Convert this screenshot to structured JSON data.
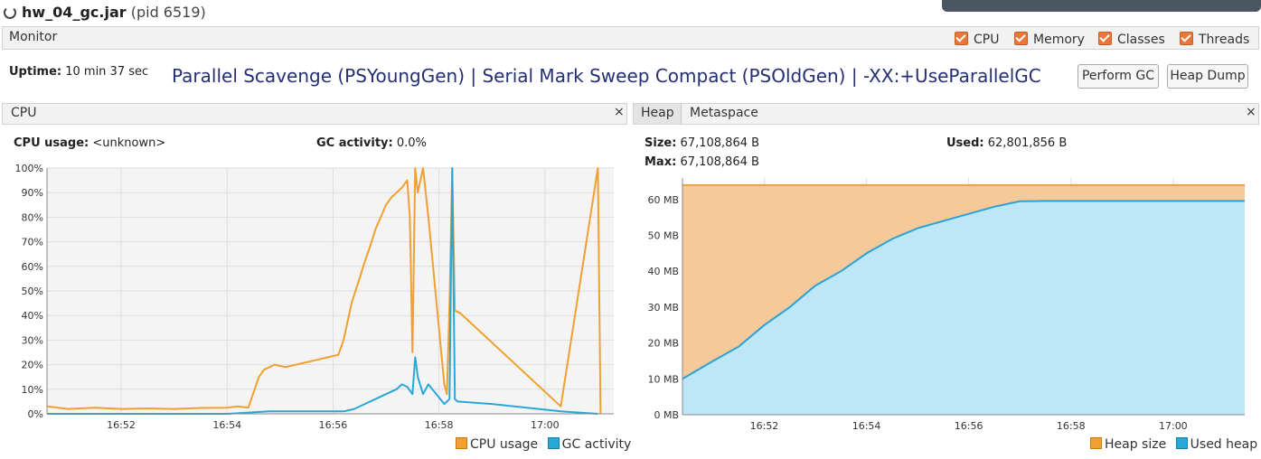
{
  "window": {
    "title": "hw_04_gc.jar",
    "pid": "(pid 6519)"
  },
  "monitor": {
    "tab_label": "Monitor",
    "checkboxes": [
      {
        "label": "CPU",
        "checked": true
      },
      {
        "label": "Memory",
        "checked": true
      },
      {
        "label": "Classes",
        "checked": true
      },
      {
        "label": "Threads",
        "checked": true
      }
    ],
    "uptime_label": "Uptime:",
    "uptime_value": "10 min 37 sec",
    "gc_info": "Parallel Scavenge (PSYoungGen) | Serial Mark Sweep Compact (PSOldGen) | -XX:+UseParallelGC",
    "perform_gc_label": "Perform GC",
    "heap_dump_label": "Heap Dump"
  },
  "cpu_panel": {
    "tab": "CPU",
    "close": "×",
    "cpu_usage_label": "CPU usage:",
    "cpu_usage_value": "<unknown>",
    "gc_activity_label": "GC activity:",
    "gc_activity_value": "0.0%",
    "legend": [
      "CPU usage",
      "GC activity"
    ]
  },
  "heap_panel": {
    "tabs": [
      "Heap",
      "Metaspace"
    ],
    "close": "×",
    "size_label": "Size:",
    "size_value": "67,108,864 B",
    "used_label": "Used:",
    "used_value": "62,801,856 B",
    "max_label": "Max:",
    "max_value": "67,108,864 B",
    "legend": [
      "Heap size",
      "Used heap"
    ]
  },
  "colors": {
    "cpu": "#f0a030",
    "gc": "#29a7d6",
    "heap_size_line": "#e9a040",
    "heap_size_fill": "#f6c99a",
    "used_heap_line": "#2aa3d4",
    "used_heap_fill": "#bde6f7",
    "title_blue": "#252f74"
  },
  "chart_data": [
    {
      "type": "line",
      "title": "",
      "x_ticks": [
        "16:52",
        "16:54",
        "16:56",
        "16:58",
        "17:00"
      ],
      "x_range_minutes": [
        50.6,
        61.3
      ],
      "y_ticks": [
        "0%",
        "10%",
        "20%",
        "30%",
        "40%",
        "50%",
        "60%",
        "70%",
        "80%",
        "90%",
        "100%"
      ],
      "ylim": [
        0,
        100
      ],
      "grid": true,
      "legend": "bottom-right",
      "series": [
        {
          "name": "CPU usage",
          "x_minutes": [
            50.6,
            51.0,
            51.5,
            52.0,
            52.5,
            53.0,
            53.5,
            54.0,
            54.2,
            54.4,
            54.6,
            54.7,
            54.9,
            55.1,
            55.3,
            55.5,
            55.7,
            55.9,
            56.1,
            56.2,
            56.35,
            56.5,
            56.6,
            56.7,
            56.8,
            56.9,
            57.0,
            57.1,
            57.2,
            57.3,
            57.4,
            57.45,
            57.5,
            57.55,
            57.6,
            57.7,
            57.8,
            58.1,
            58.15,
            58.2,
            58.25,
            58.3,
            58.4,
            60.3,
            61.0,
            61.05
          ],
          "values": [
            3,
            2,
            2.5,
            2,
            2.2,
            2,
            2.4,
            2.5,
            3,
            2.5,
            15,
            18,
            20,
            19,
            20,
            21,
            22,
            23,
            24,
            30,
            45,
            55,
            62,
            68,
            75,
            80,
            85,
            88,
            90,
            92,
            95,
            80,
            25,
            100,
            90,
            100,
            80,
            12,
            8,
            45,
            100,
            42,
            41,
            3,
            100,
            0
          ]
        },
        {
          "name": "GC activity",
          "x_minutes": [
            50.6,
            54.0,
            54.8,
            55.5,
            56.0,
            56.2,
            56.4,
            56.6,
            56.8,
            57.0,
            57.2,
            57.3,
            57.4,
            57.5,
            57.55,
            57.6,
            57.7,
            57.8,
            58.1,
            58.2,
            58.25,
            58.3,
            58.35,
            59.0,
            60.3,
            61.0
          ],
          "values": [
            0,
            0,
            1,
            1,
            1,
            1,
            2,
            4,
            6,
            8,
            10,
            12,
            11,
            8,
            23,
            15,
            8,
            12,
            4,
            6,
            100,
            6,
            5,
            4,
            1,
            0
          ]
        }
      ]
    },
    {
      "type": "area",
      "title": "",
      "x_ticks": [
        "16:52",
        "16:54",
        "16:56",
        "16:58",
        "17:00"
      ],
      "x_range_minutes": [
        50.4,
        61.4
      ],
      "y_ticks": [
        "0 MB",
        "10 MB",
        "20 MB",
        "30 MB",
        "40 MB",
        "50 MB",
        "60 MB"
      ],
      "ylim": [
        0,
        66
      ],
      "grid": true,
      "legend": "bottom-right",
      "series": [
        {
          "name": "Heap size",
          "x_minutes": [
            50.4,
            61.4
          ],
          "values": [
            64,
            64
          ]
        },
        {
          "name": "Used heap",
          "x_minutes": [
            50.4,
            51.0,
            51.5,
            52.0,
            52.5,
            53.0,
            53.5,
            54.0,
            54.5,
            55.0,
            55.5,
            56.0,
            56.5,
            57.0,
            57.5,
            58.0,
            59.0,
            60.0,
            61.0,
            61.4
          ],
          "values": [
            10,
            15,
            19,
            25,
            30,
            36,
            40,
            45,
            49,
            52,
            54,
            56,
            58,
            59.5,
            59.6,
            59.6,
            59.6,
            59.6,
            59.6,
            59.6
          ]
        }
      ]
    }
  ]
}
